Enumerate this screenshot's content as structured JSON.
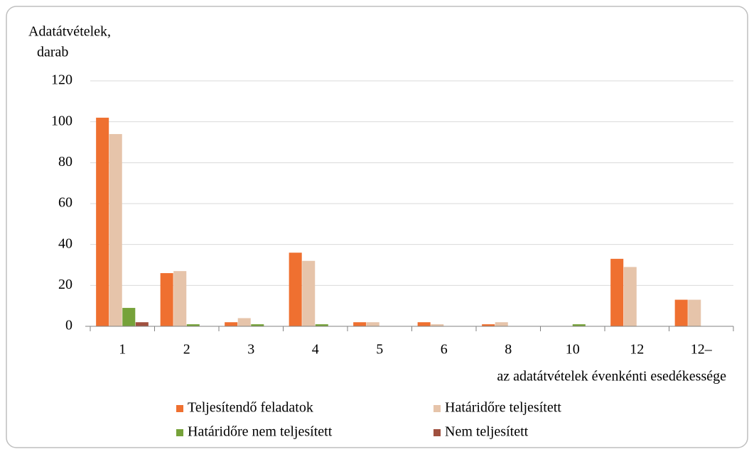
{
  "chart_data": {
    "type": "bar",
    "ylabel": [
      "Adatátvételek,",
      "darab"
    ],
    "xlabel": "az adatátvételek évenkénti esedékessége",
    "categories": [
      "1",
      "2",
      "3",
      "4",
      "5",
      "6",
      "8",
      "10",
      "12",
      "12–"
    ],
    "series": [
      {
        "name": "Teljesítendő feladatok",
        "color": "#ef7030",
        "values": [
          102,
          26,
          2,
          36,
          2,
          2,
          1,
          0,
          33,
          13
        ]
      },
      {
        "name": "Határidőre teljesített",
        "color": "#e6c4aa",
        "values": [
          94,
          27,
          4,
          32,
          2,
          1,
          2,
          0,
          29,
          13
        ]
      },
      {
        "name": "Határidőre nem teljesített",
        "color": "#76a23a",
        "values": [
          9,
          1,
          1,
          1,
          0,
          0,
          0,
          1,
          0,
          0
        ]
      },
      {
        "name": "Nem teljesített",
        "color": "#a0503f",
        "values": [
          2,
          0,
          0,
          0,
          0,
          0,
          0,
          0,
          0,
          0
        ]
      }
    ],
    "ylim": [
      0,
      120
    ],
    "yticks": [
      0,
      20,
      40,
      60,
      80,
      100,
      120
    ],
    "grid": true,
    "legend": "bottom"
  }
}
